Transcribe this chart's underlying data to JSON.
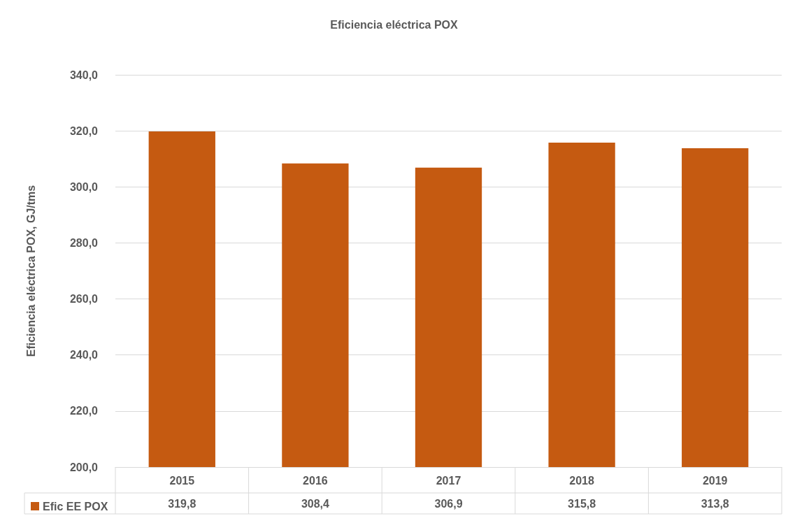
{
  "chart_data": {
    "type": "bar",
    "title": "Eficiencia eléctrica POX",
    "ylabel": "Eficiencia eléctrica POX, GJ/tms",
    "categories": [
      "2015",
      "2016",
      "2017",
      "2018",
      "2019"
    ],
    "series": [
      {
        "name": "Efic EE POX",
        "color": "#c55a11",
        "values": [
          319.8,
          308.4,
          306.9,
          315.8,
          313.8
        ],
        "value_labels": [
          "319,8",
          "308,4",
          "306,9",
          "315,8",
          "313,8"
        ]
      }
    ],
    "ylim": [
      200,
      340
    ],
    "yticks": [
      {
        "value": 200,
        "label": "200,0"
      },
      {
        "value": 220,
        "label": "220,0"
      },
      {
        "value": 240,
        "label": "240,0"
      },
      {
        "value": 260,
        "label": "260,0"
      },
      {
        "value": 280,
        "label": "280,0"
      },
      {
        "value": 300,
        "label": "300,0"
      },
      {
        "value": 320,
        "label": "320,0"
      },
      {
        "value": 340,
        "label": "340,0"
      }
    ],
    "grid": "y",
    "legend": "bottom left"
  }
}
